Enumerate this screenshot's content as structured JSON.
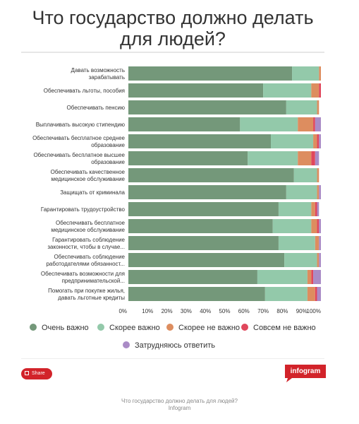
{
  "page": {
    "title_lines": [
      "Что государство должно делать",
      "для людей?"
    ],
    "share_label": "Share",
    "brand_label": "infogram",
    "caption_title": "Что государство должно делать для людей?",
    "caption_source": "Infogram"
  },
  "legend": [
    {
      "label": "Очень важно",
      "color": "#74987a"
    },
    {
      "label": "Скорее важно",
      "color": "#93c9aa"
    },
    {
      "label": "Скорее не важно",
      "color": "#dd8d5f"
    },
    {
      "label": "Совсем не важно",
      "color": "#e0475c"
    },
    {
      "label": "Затрудняюсь ответить",
      "color": "#aa8bc6"
    }
  ],
  "chart_data": {
    "type": "bar",
    "orientation": "horizontal",
    "stacked": true,
    "xlim": [
      0,
      100
    ],
    "x_ticks": [
      "0%",
      "10%",
      "20%",
      "30%",
      "40%",
      "50%",
      "60%",
      "70%",
      "80%",
      "90%",
      "100%"
    ],
    "grid": false,
    "legend_position": "bottom",
    "categories": [
      [
        "Давать возможность",
        "зарабатывать"
      ],
      [
        "Обеспечивать льготы, пособия"
      ],
      [
        "Обеспечивать пенсию"
      ],
      [
        "Выплачивать высокую стипендию"
      ],
      [
        "Обеспечивать бесплатное среднее",
        "образование"
      ],
      [
        "Обеспечивать бесплатное высшее",
        "образование"
      ],
      [
        "Обеспечивать качественное",
        "медицинское обслуживание"
      ],
      [
        "Защищать от криминала"
      ],
      [
        "Гарантировать трудоустройство"
      ],
      [
        "Обеспечивать бесплатное",
        "медицинское обслуживание"
      ],
      [
        "Гарантировать соблюдение",
        "законности, чтобы в случае..."
      ],
      [
        "Обеспечивать соблюдение",
        "работодателями обязанност..."
      ],
      [
        "Обеспечивать возможности для",
        "предпринимательской..."
      ],
      [
        "Помогать при покупке жилья,",
        "давать льготные кредиты"
      ]
    ],
    "series": [
      {
        "name": "Очень важно",
        "values": [
          85,
          70,
          82,
          58,
          74,
          62,
          86,
          82,
          78,
          75,
          78,
          81,
          67,
          71
        ]
      },
      {
        "name": "Скорее важно",
        "values": [
          14,
          25,
          16,
          30,
          22,
          26,
          12,
          16,
          17,
          20,
          19,
          17,
          26,
          22
        ]
      },
      {
        "name": "Скорее не важно",
        "values": [
          1,
          4,
          1,
          8,
          2,
          7,
          1,
          1,
          2,
          3,
          2,
          1,
          2,
          4
        ]
      },
      {
        "name": "Совсем не важно",
        "values": [
          0,
          1,
          0,
          1,
          1,
          2,
          0,
          0,
          1,
          1,
          0,
          0,
          1,
          1
        ]
      },
      {
        "name": "Затрудняюсь ответить",
        "values": [
          0,
          0,
          0,
          3,
          1,
          2,
          0,
          1,
          1,
          1,
          1,
          1,
          4,
          2
        ]
      }
    ]
  }
}
